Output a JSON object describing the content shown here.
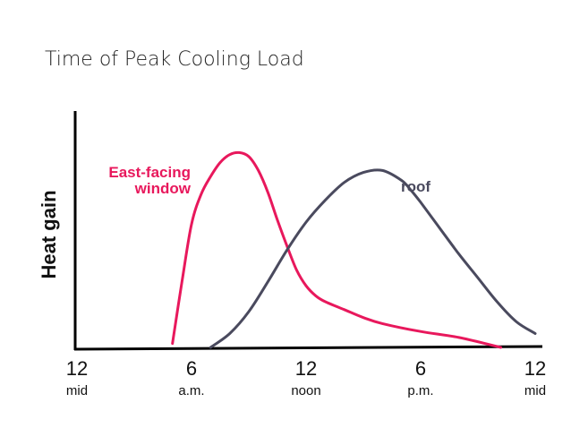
{
  "slide": {
    "title": "Time of Peak Cooling Load"
  },
  "chart_data": {
    "type": "line",
    "title": "Time of Peak Cooling Load",
    "xlabel": "",
    "ylabel": "Heat gain",
    "xlim": [
      0,
      24
    ],
    "ylim": [
      0,
      1
    ],
    "y_ticks_shown": false,
    "grid": false,
    "legend": "inline labels",
    "x_ticks": [
      {
        "value": 0,
        "label": "12",
        "sublabel": "mid"
      },
      {
        "value": 6,
        "label": "6",
        "sublabel": "a.m."
      },
      {
        "value": 12,
        "label": "12",
        "sublabel": "noon"
      },
      {
        "value": 18,
        "label": "6",
        "sublabel": "p.m."
      },
      {
        "value": 24,
        "label": "12",
        "sublabel": "mid"
      }
    ],
    "series": [
      {
        "name": "East-facing window",
        "label_lines": [
          "East-facing",
          "window"
        ],
        "color": "#e8185c",
        "x": [
          5,
          5.5,
          6,
          6.5,
          7,
          7.5,
          8,
          8.5,
          9,
          9.5,
          10,
          10.5,
          11,
          11.5,
          12,
          12.5,
          13,
          14,
          15,
          16,
          18,
          20,
          22.2
        ],
        "y": [
          0.02,
          0.33,
          0.62,
          0.77,
          0.86,
          0.93,
          0.97,
          0.98,
          0.96,
          0.89,
          0.78,
          0.64,
          0.51,
          0.39,
          0.31,
          0.26,
          0.23,
          0.19,
          0.15,
          0.12,
          0.08,
          0.05,
          0.0
        ]
      },
      {
        "name": "roof",
        "label_lines": [
          "roof"
        ],
        "color": "#4a4a5e",
        "x": [
          7,
          8,
          9,
          10,
          11,
          12,
          13,
          14,
          15,
          16,
          17,
          17.5,
          18,
          19,
          20,
          21,
          22,
          23,
          24
        ],
        "y": [
          0.0,
          0.07,
          0.18,
          0.33,
          0.49,
          0.63,
          0.74,
          0.83,
          0.88,
          0.89,
          0.84,
          0.79,
          0.73,
          0.6,
          0.47,
          0.35,
          0.23,
          0.13,
          0.07
        ]
      }
    ]
  }
}
